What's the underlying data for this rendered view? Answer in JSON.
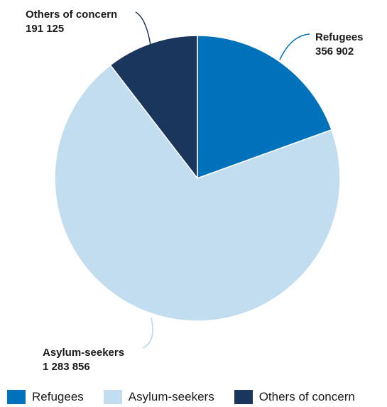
{
  "chart_data": {
    "type": "pie",
    "title": "",
    "slices": [
      {
        "name": "Refugees",
        "value": 356902,
        "value_label": "356 902",
        "color": "#0072bc"
      },
      {
        "name": "Asylum-seekers",
        "value": 1283856,
        "value_label": "1 283 856",
        "color": "#c2ddef"
      },
      {
        "name": "Others of concern",
        "value": 191125,
        "value_label": "191 125",
        "color": "#1a365d"
      }
    ],
    "legend_position": "bottom"
  },
  "legend": {
    "items": [
      {
        "label": "Refugees",
        "color": "#0072bc"
      },
      {
        "label": "Asylum-seekers",
        "color": "#c2ddef"
      },
      {
        "label": "Others of concern",
        "color": "#1a365d"
      }
    ]
  }
}
